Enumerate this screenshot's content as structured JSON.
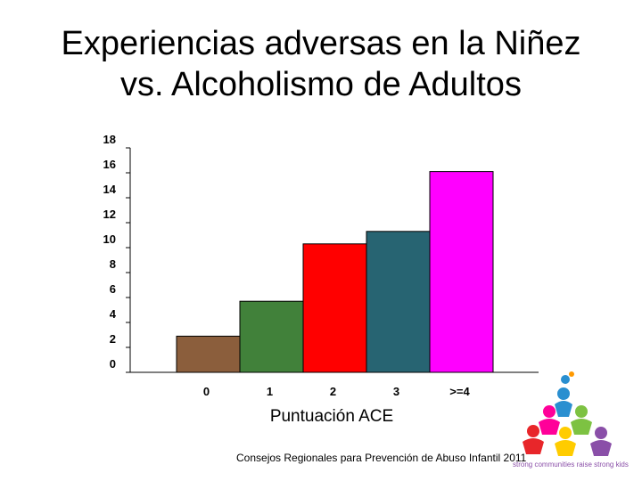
{
  "slide": {
    "title_line1": "Experiencias adversas en la Niñez",
    "title_line2": "vs. Alcoholismo de Adultos",
    "footer": "Consejos Regionales para Prevención de Abuso Infantil 2011",
    "tagline": "strong communities raise strong kids"
  },
  "chart_data": {
    "type": "bar",
    "categories": [
      "0",
      "1",
      "2",
      "3",
      ">=4"
    ],
    "values": [
      2.9,
      5.7,
      10.3,
      11.3,
      16.1
    ],
    "colors": [
      "#8b5e3c",
      "#41813a",
      "#ff0000",
      "#276472",
      "#ff00ff"
    ],
    "xlabel": "Puntuación ACE",
    "ylim": [
      0,
      18
    ],
    "yticks": [
      0,
      2,
      4,
      6,
      8,
      10,
      12,
      14,
      16,
      18
    ],
    "grid": false
  }
}
